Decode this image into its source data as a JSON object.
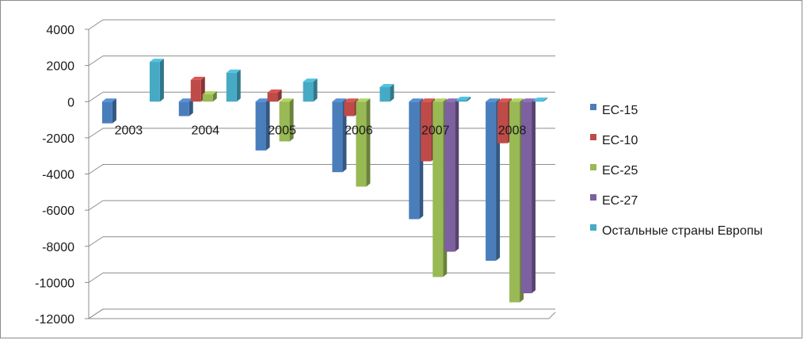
{
  "chart_data": {
    "type": "bar",
    "categories": [
      "2003",
      "2004",
      "2005",
      "2006",
      "2007",
      "2008"
    ],
    "ylim": [
      -12000,
      4000
    ],
    "yticks": [
      4000,
      2000,
      0,
      -2000,
      -4000,
      -6000,
      -8000,
      -10000,
      -12000
    ],
    "grid": true,
    "legend_position": "right",
    "series": [
      {
        "name": "ЕС-15",
        "color": "#4A7EBB",
        "values": [
          -1200,
          -800,
          -2700,
          -3900,
          -6500,
          -8800
        ]
      },
      {
        "name": "ЕС-10",
        "color": "#BE4B48",
        "values": [
          null,
          1200,
          500,
          -800,
          -3300,
          -2300
        ]
      },
      {
        "name": "ЕС-25",
        "color": "#98B954",
        "values": [
          null,
          400,
          -2200,
          -4700,
          -9700,
          -11100
        ]
      },
      {
        "name": "ЕС-27",
        "color": "#7D60A0",
        "values": [
          null,
          null,
          null,
          null,
          -8300,
          -10600
        ]
      },
      {
        "name": "Остальные страны Европы",
        "color": "#46AAC5",
        "values": [
          2200,
          1600,
          1100,
          800,
          100,
          50
        ]
      }
    ]
  }
}
